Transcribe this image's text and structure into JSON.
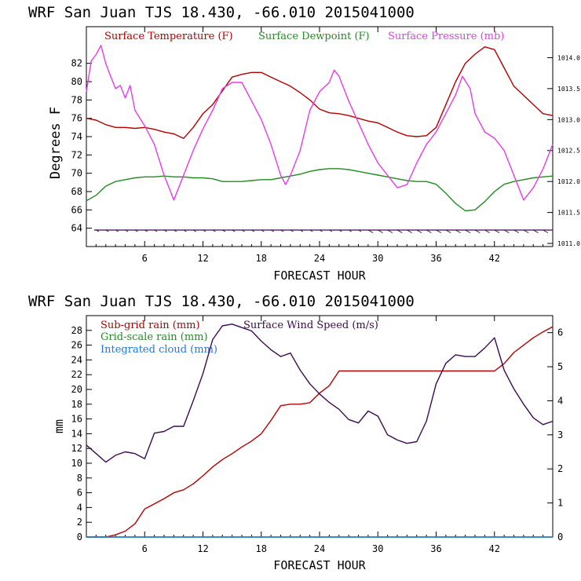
{
  "chart_data": [
    {
      "type": "line",
      "header": "WRF  San Juan TJS  18.430, -66.010  2015041000",
      "xlabel": "FORECAST HOUR",
      "ylabel": "Degrees F",
      "xlim": [
        0,
        48
      ],
      "xticks": [
        6,
        12,
        18,
        24,
        30,
        36,
        42
      ],
      "ylim": [
        62,
        86
      ],
      "yticks": [
        64,
        66,
        68,
        70,
        72,
        74,
        76,
        78,
        80,
        82
      ],
      "y2lim": [
        1010.95,
        1014.5
      ],
      "y2ticks": [
        "1011.0",
        "1011.5",
        "1012.0",
        "1012.5",
        "1013.0",
        "1013.5",
        "1014.0"
      ],
      "y2tick_values": [
        1011.0,
        1011.5,
        1012.0,
        1012.5,
        1013.0,
        1013.5,
        1014.0
      ],
      "wind_barbs_row": true,
      "series": [
        {
          "name": "Surface Temperature (F)",
          "color": "#b40000",
          "axis": "left",
          "points": [
            [
              0,
              76.0
            ],
            [
              1,
              75.8
            ],
            [
              2,
              75.3
            ],
            [
              3,
              75.0
            ],
            [
              4,
              75.0
            ],
            [
              5,
              74.9
            ],
            [
              6,
              75.0
            ],
            [
              7,
              74.8
            ],
            [
              8,
              74.5
            ],
            [
              9,
              74.3
            ],
            [
              10,
              73.8
            ],
            [
              11,
              75.0
            ],
            [
              12,
              76.5
            ],
            [
              13,
              77.5
            ],
            [
              14,
              79.0
            ],
            [
              15,
              80.5
            ],
            [
              16,
              80.8
            ],
            [
              17,
              81.0
            ],
            [
              18,
              81.0
            ],
            [
              19,
              80.5
            ],
            [
              20,
              80.0
            ],
            [
              21,
              79.5
            ],
            [
              22,
              78.8
            ],
            [
              23,
              78.0
            ],
            [
              24,
              77.0
            ],
            [
              25,
              76.6
            ],
            [
              26,
              76.5
            ],
            [
              27,
              76.3
            ],
            [
              28,
              76.0
            ],
            [
              29,
              75.7
            ],
            [
              30,
              75.5
            ],
            [
              31,
              75.0
            ],
            [
              32,
              74.5
            ],
            [
              33,
              74.1
            ],
            [
              34,
              74.0
            ],
            [
              35,
              74.1
            ],
            [
              36,
              75.0
            ],
            [
              37,
              77.5
            ],
            [
              38,
              80.0
            ],
            [
              39,
              82.0
            ],
            [
              40,
              83.0
            ],
            [
              41,
              83.8
            ],
            [
              42,
              83.5
            ],
            [
              43,
              81.5
            ],
            [
              44,
              79.5
            ],
            [
              45,
              78.5
            ],
            [
              46,
              77.5
            ],
            [
              47,
              76.5
            ],
            [
              48,
              76.3
            ]
          ]
        },
        {
          "name": "Surface Dewpoint (F)",
          "color": "#228b22",
          "axis": "left",
          "points": [
            [
              0,
              67.0
            ],
            [
              1,
              67.6
            ],
            [
              2,
              68.6
            ],
            [
              3,
              69.1
            ],
            [
              4,
              69.3
            ],
            [
              5,
              69.5
            ],
            [
              6,
              69.6
            ],
            [
              7,
              69.6
            ],
            [
              8,
              69.7
            ],
            [
              9,
              69.6
            ],
            [
              10,
              69.6
            ],
            [
              11,
              69.5
            ],
            [
              12,
              69.5
            ],
            [
              13,
              69.4
            ],
            [
              14,
              69.1
            ],
            [
              15,
              69.1
            ],
            [
              16,
              69.1
            ],
            [
              17,
              69.2
            ],
            [
              18,
              69.3
            ],
            [
              19,
              69.3
            ],
            [
              20,
              69.5
            ],
            [
              21,
              69.7
            ],
            [
              22,
              69.9
            ],
            [
              23,
              70.2
            ],
            [
              24,
              70.4
            ],
            [
              25,
              70.5
            ],
            [
              26,
              70.5
            ],
            [
              27,
              70.4
            ],
            [
              28,
              70.2
            ],
            [
              29,
              70.0
            ],
            [
              30,
              69.8
            ],
            [
              31,
              69.6
            ],
            [
              32,
              69.4
            ],
            [
              33,
              69.2
            ],
            [
              34,
              69.1
            ],
            [
              35,
              69.1
            ],
            [
              36,
              68.8
            ],
            [
              37,
              67.8
            ],
            [
              38,
              66.7
            ],
            [
              39,
              65.9
            ],
            [
              40,
              66.0
            ],
            [
              41,
              66.9
            ],
            [
              42,
              68.0
            ],
            [
              43,
              68.8
            ],
            [
              44,
              69.1
            ],
            [
              45,
              69.3
            ],
            [
              46,
              69.5
            ],
            [
              47,
              69.6
            ],
            [
              48,
              69.7
            ]
          ]
        },
        {
          "name": "Surface Pressure (mb)",
          "color": "#e63ce6",
          "axis": "right",
          "points": [
            [
              0,
              1013.45
            ],
            [
              0.5,
              1013.95
            ],
            [
              1,
              1014.05
            ],
            [
              1.5,
              1014.2
            ],
            [
              2,
              1013.9
            ],
            [
              2.5,
              1013.7
            ],
            [
              3,
              1013.5
            ],
            [
              3.5,
              1013.55
            ],
            [
              4,
              1013.35
            ],
            [
              4.5,
              1013.55
            ],
            [
              5,
              1013.15
            ],
            [
              6,
              1012.9
            ],
            [
              7,
              1012.6
            ],
            [
              8,
              1012.1
            ],
            [
              9,
              1011.7
            ],
            [
              10,
              1012.1
            ],
            [
              11,
              1012.5
            ],
            [
              12,
              1012.85
            ],
            [
              13,
              1013.15
            ],
            [
              14,
              1013.5
            ],
            [
              15,
              1013.6
            ],
            [
              16,
              1013.6
            ],
            [
              17,
              1013.3
            ],
            [
              18,
              1013.0
            ],
            [
              19,
              1012.6
            ],
            [
              20,
              1012.1
            ],
            [
              20.5,
              1011.95
            ],
            [
              21,
              1012.1
            ],
            [
              22,
              1012.5
            ],
            [
              23,
              1013.15
            ],
            [
              24,
              1013.45
            ],
            [
              25,
              1013.6
            ],
            [
              25.5,
              1013.8
            ],
            [
              26,
              1013.7
            ],
            [
              27,
              1013.3
            ],
            [
              28,
              1012.95
            ],
            [
              29,
              1012.6
            ],
            [
              30,
              1012.3
            ],
            [
              31,
              1012.1
            ],
            [
              32,
              1011.9
            ],
            [
              33,
              1011.95
            ],
            [
              34,
              1012.3
            ],
            [
              35,
              1012.6
            ],
            [
              36,
              1012.8
            ],
            [
              37,
              1013.1
            ],
            [
              38,
              1013.4
            ],
            [
              38.7,
              1013.7
            ],
            [
              39.5,
              1013.5
            ],
            [
              40,
              1013.1
            ],
            [
              41,
              1012.8
            ],
            [
              42,
              1012.7
            ],
            [
              43,
              1012.5
            ],
            [
              44,
              1012.1
            ],
            [
              45,
              1011.7
            ],
            [
              46,
              1011.9
            ],
            [
              47,
              1012.2
            ],
            [
              48,
              1012.6
            ]
          ]
        }
      ]
    },
    {
      "type": "line",
      "header": "WRF  San Juan TJS  18.430, -66.010  2015041000",
      "xlabel": "FORECAST HOUR",
      "ylabel": "mm",
      "xlim": [
        0,
        48
      ],
      "xticks": [
        6,
        12,
        18,
        24,
        30,
        36,
        42
      ],
      "ylim": [
        0,
        30
      ],
      "yticks": [
        0,
        2,
        4,
        6,
        8,
        10,
        12,
        14,
        16,
        18,
        20,
        22,
        24,
        26,
        28
      ],
      "y2lim": [
        0,
        6.5
      ],
      "y2ticks": [
        0,
        1,
        2,
        3,
        4,
        5,
        6
      ],
      "series": [
        {
          "name": "Sub-grid rain (mm)",
          "color": "#b40000",
          "axis": "left",
          "points": [
            [
              0,
              0
            ],
            [
              2,
              0
            ],
            [
              3,
              0.3
            ],
            [
              4,
              0.8
            ],
            [
              5,
              1.8
            ],
            [
              6,
              3.8
            ],
            [
              7,
              4.5
            ],
            [
              8,
              5.2
            ],
            [
              9,
              6.0
            ],
            [
              10,
              6.4
            ],
            [
              11,
              7.2
            ],
            [
              12,
              8.3
            ],
            [
              13,
              9.5
            ],
            [
              14,
              10.5
            ],
            [
              15,
              11.3
            ],
            [
              16,
              12.2
            ],
            [
              17,
              13.0
            ],
            [
              18,
              14.0
            ],
            [
              19,
              15.8
            ],
            [
              20,
              17.8
            ],
            [
              21,
              18.0
            ],
            [
              22,
              18.0
            ],
            [
              23,
              18.2
            ],
            [
              24,
              19.5
            ],
            [
              25,
              20.5
            ],
            [
              26,
              22.5
            ],
            [
              27,
              22.5
            ],
            [
              30,
              22.5
            ],
            [
              36,
              22.5
            ],
            [
              40,
              22.5
            ],
            [
              42,
              22.5
            ],
            [
              43,
              23.5
            ],
            [
              44,
              25.0
            ],
            [
              45,
              26.0
            ],
            [
              46,
              27.0
            ],
            [
              47,
              27.8
            ],
            [
              48,
              28.5
            ]
          ]
        },
        {
          "name": "Grid-scale rain (mm)",
          "color": "#228b22",
          "axis": "left",
          "points": [
            [
              0,
              0
            ],
            [
              48,
              0
            ]
          ]
        },
        {
          "name": "Integrated cloud (mm)",
          "color": "#1e78dc",
          "axis": "left",
          "points": [
            [
              0,
              0
            ],
            [
              48,
              0
            ]
          ]
        },
        {
          "name": "Surface Wind Speed (m/s)",
          "color": "#3c0a50",
          "axis": "right",
          "points": [
            [
              0,
              2.7
            ],
            [
              1,
              2.45
            ],
            [
              2,
              2.2
            ],
            [
              3,
              2.4
            ],
            [
              4,
              2.5
            ],
            [
              5,
              2.45
            ],
            [
              6,
              2.3
            ],
            [
              7,
              3.05
            ],
            [
              8,
              3.1
            ],
            [
              9,
              3.25
            ],
            [
              10,
              3.25
            ],
            [
              11,
              4.0
            ],
            [
              12,
              4.8
            ],
            [
              13,
              5.8
            ],
            [
              14,
              6.2
            ],
            [
              15,
              6.25
            ],
            [
              16,
              6.15
            ],
            [
              17,
              6.05
            ],
            [
              18,
              5.75
            ],
            [
              19,
              5.5
            ],
            [
              20,
              5.3
            ],
            [
              21,
              5.4
            ],
            [
              22,
              4.9
            ],
            [
              23,
              4.5
            ],
            [
              24,
              4.2
            ],
            [
              25,
              3.95
            ],
            [
              26,
              3.75
            ],
            [
              27,
              3.45
            ],
            [
              28,
              3.35
            ],
            [
              29,
              3.7
            ],
            [
              30,
              3.55
            ],
            [
              31,
              3.0
            ],
            [
              32,
              2.85
            ],
            [
              33,
              2.75
            ],
            [
              34,
              2.8
            ],
            [
              35,
              3.4
            ],
            [
              36,
              4.5
            ],
            [
              37,
              5.1
            ],
            [
              38,
              5.35
            ],
            [
              39,
              5.3
            ],
            [
              40,
              5.3
            ],
            [
              41,
              5.55
            ],
            [
              42,
              5.85
            ],
            [
              43,
              4.9
            ],
            [
              44,
              4.35
            ],
            [
              45,
              3.9
            ],
            [
              46,
              3.5
            ],
            [
              47,
              3.3
            ],
            [
              48,
              3.4
            ]
          ]
        }
      ]
    }
  ]
}
